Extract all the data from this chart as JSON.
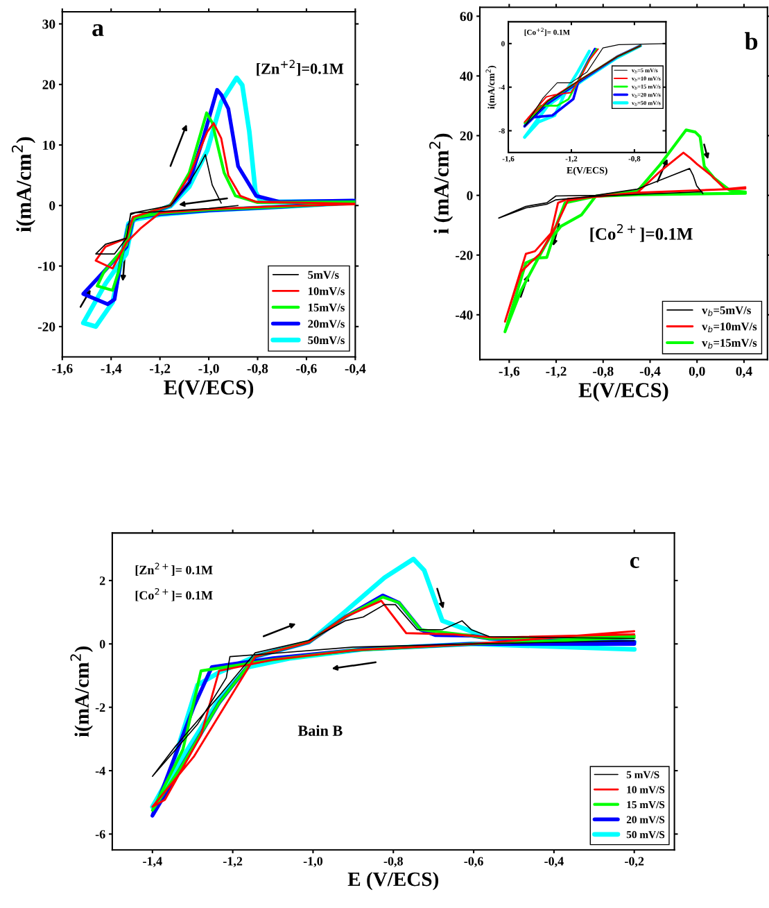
{
  "chart_data": [
    {
      "type": "line",
      "xlabel": "E(V/ECS)",
      "ylabel": "i(mA/cm$^{2}$)",
      "annotations": [
        "a",
        "[Zn$^{+2}$]=0.1M"
      ],
      "xlim": [
        -1.6,
        -0.4
      ],
      "xticks": [
        {
          "value": -1.6,
          "label": "-1,6"
        },
        {
          "value": -1.4,
          "label": "-1,4"
        },
        {
          "value": -1.2,
          "label": "-1,2"
        },
        {
          "value": -1.0,
          "label": "-1,0"
        },
        {
          "value": -0.8,
          "label": "-0,8"
        },
        {
          "value": -0.6,
          "label": "-0,6"
        },
        {
          "value": -0.4,
          "label": "-0,4"
        }
      ],
      "ylim": [
        -25,
        32
      ],
      "yticks": [
        -20,
        -10,
        0,
        10,
        20,
        30
      ],
      "legend": "bottom right",
      "grid": false,
      "tick_labels": "xy",
      "series": [
        {
          "name": "5mV/s",
          "color": "#000000",
          "x": [
            -0.88,
            -1.0,
            -1.2,
            -1.3,
            -1.32,
            -1.337,
            -1.386,
            -1.463,
            -1.423,
            -1.337,
            -1.32,
            -1.157,
            -1.08,
            -1.034,
            -1.014,
            -0.986,
            -0.949
          ],
          "values": [
            0,
            -0.5,
            -1.0,
            -1.2,
            -1.5,
            -5.4,
            -8,
            -8,
            -6.4,
            -5.4,
            -1.3,
            0,
            3.8,
            6.9,
            8.4,
            3.4,
            0.4
          ]
        },
        {
          "name": "10mV/s",
          "color": "#ff0000",
          "x": [
            -0.4,
            -0.7,
            -1.0,
            -1.2,
            -1.234,
            -1.28,
            -1.337,
            -1.394,
            -1.463,
            -1.423,
            -1.337,
            -1.31,
            -1.157,
            -1.08,
            -1.006,
            -0.98,
            -0.949,
            -0.92,
            -0.871,
            -0.806,
            -0.4
          ],
          "values": [
            0.2,
            -0.1,
            -0.6,
            -1.2,
            -2.3,
            -3.8,
            -6.1,
            -10.4,
            -9.1,
            -6.8,
            -5.4,
            -1.9,
            0,
            4.9,
            12.2,
            13.6,
            11.1,
            5.0,
            1.6,
            0.6,
            0.3
          ]
        },
        {
          "name": "15mV/s",
          "color": "#00ff00",
          "x": [
            -0.4,
            -0.7,
            -1.0,
            -1.2,
            -1.3,
            -1.33,
            -1.37,
            -1.394,
            -1.457,
            -1.43,
            -1.337,
            -1.31,
            -1.157,
            -1.08,
            -1.009,
            -0.986,
            -0.937,
            -0.891,
            -0.8,
            -0.4
          ],
          "values": [
            0.4,
            -0.2,
            -0.7,
            -1.3,
            -2.0,
            -3.5,
            -11,
            -14,
            -13.3,
            -11,
            -6.5,
            -2.0,
            0,
            5.4,
            15.3,
            13.7,
            5.4,
            1.6,
            0.5,
            0.6
          ]
        },
        {
          "name": "20mV/s",
          "color": "#0000ff",
          "x": [
            -0.4,
            -0.7,
            -1.0,
            -1.2,
            -1.3,
            -1.329,
            -1.36,
            -1.386,
            -1.414,
            -1.514,
            -1.42,
            -1.337,
            -1.31,
            -1.157,
            -1.08,
            -1.023,
            -0.966,
            -0.949,
            -0.92,
            -0.88,
            -0.806,
            -0.709,
            -0.4
          ],
          "values": [
            0.5,
            -0.2,
            -0.8,
            -1.4,
            -2.0,
            -3.3,
            -9,
            -15.5,
            -16.3,
            -14.6,
            -10.5,
            -6.8,
            -2.3,
            0,
            3.8,
            11.1,
            19.1,
            18.3,
            16,
            6.5,
            1.6,
            0.6,
            0.8
          ]
        },
        {
          "name": "50mV/s",
          "color": "#00ffff",
          "x": [
            -0.4,
            -0.7,
            -1.0,
            -1.2,
            -1.3,
            -1.329,
            -1.366,
            -1.394,
            -1.463,
            -1.514,
            -1.423,
            -1.338,
            -1.31,
            -1.157,
            -1.08,
            -1.006,
            -0.949,
            -0.886,
            -0.863,
            -0.834,
            -0.809,
            -0.786,
            -0.4
          ],
          "values": [
            0.5,
            -0.2,
            -0.8,
            -1.5,
            -2.3,
            -3.0,
            -10.6,
            -16,
            -20,
            -19.4,
            -12.9,
            -8.0,
            -2.3,
            -0.1,
            3.1,
            9.1,
            17.1,
            21.1,
            19.9,
            12.2,
            2.3,
            0.6,
            0.7
          ]
        }
      ]
    },
    {
      "type": "line",
      "xlabel": "E(V/ECS)",
      "ylabel": "i (mA/cm$^{2}$)",
      "annotations": [
        "b",
        "[Co$^{2+}$]=0.1M"
      ],
      "xlim": [
        -1.85,
        0.6
      ],
      "xticks": [
        {
          "value": -1.6,
          "label": "-1,6"
        },
        {
          "value": -1.2,
          "label": "-1,2"
        },
        {
          "value": -0.8,
          "label": "-0,8"
        },
        {
          "value": -0.4,
          "label": "-0,4"
        },
        {
          "value": 0.0,
          "label": "0,0"
        },
        {
          "value": 0.4,
          "label": "0,4"
        }
      ],
      "ylim": [
        -55,
        63
      ],
      "yticks": [
        -40,
        -20,
        0,
        20,
        40,
        60
      ],
      "legend": "bottom right",
      "grid": false,
      "series": [
        {
          "name": "v$_{b}$=5mV/s",
          "color": "#000000",
          "x": [
            0.044,
            -0.4,
            -0.864,
            -1.202,
            -1.28,
            -1.458,
            -1.689,
            -1.458,
            -1.28,
            -1.202,
            -0.864,
            -0.508,
            -0.27,
            -0.063,
            -0.033,
            -0.003,
            0.05
          ],
          "values": [
            1.2,
            0.5,
            -0.3,
            -1.5,
            -3.0,
            -4.2,
            -7.6,
            -3.7,
            -2.5,
            -0.2,
            0,
            2.1,
            5.8,
            9.0,
            6.7,
            3.2,
            0.6
          ]
        },
        {
          "name": "v$_{b}$=10mV/s",
          "color": "#ff0000",
          "x": [
            0.412,
            -0.5,
            -0.864,
            -1.101,
            -1.184,
            -1.244,
            -1.38,
            -1.458,
            -1.636,
            -1.5,
            -1.34,
            -1.22,
            -1.101,
            -0.864,
            -0.508,
            -0.312,
            -0.116,
            -0.057,
            0.002,
            0.121,
            0.24,
            0.412
          ],
          "values": [
            2.3,
            0.9,
            -0.5,
            -1.2,
            -2.5,
            -12.7,
            -18.7,
            -19.6,
            -42.3,
            -25.6,
            -19.6,
            -11.8,
            -1.8,
            -0.3,
            0.9,
            8.1,
            14.3,
            12.5,
            10.4,
            6.7,
            2.1,
            2.7
          ]
        },
        {
          "name": "v$_{b}$=15mV/s",
          "color": "#00ff00",
          "x": [
            0.412,
            -0.5,
            -0.864,
            -0.983,
            -1.161,
            -1.22,
            -1.28,
            -1.362,
            -1.458,
            -1.636,
            -1.5,
            -1.34,
            -1.202,
            -1.125,
            -0.864,
            -0.508,
            -0.312,
            -0.093,
            -0.015,
            0.026,
            0.062,
            0.145,
            0.282,
            0.412
          ],
          "values": [
            0.7,
            0.2,
            -0.3,
            -6.5,
            -10.4,
            -13.4,
            -20.8,
            -21,
            -22.6,
            -45.7,
            -31.9,
            -20.1,
            -10.4,
            -2.5,
            -0.3,
            1.4,
            10.4,
            21.9,
            21.2,
            19.6,
            9.7,
            5.8,
            1.6,
            1.1
          ]
        }
      ]
    },
    {
      "type": "line",
      "xlabel": "E(V/ECS)",
      "ylabel": "i(mA/cm$^{2}$)",
      "annotations": [
        "[Co$^{+2}$]= 0.1M"
      ],
      "xlim": [
        -1.6,
        -0.6
      ],
      "xticks": [
        {
          "value": -1.6,
          "label": "-1,6"
        },
        {
          "value": -1.2,
          "label": "-1,2"
        },
        {
          "value": -0.8,
          "label": "-0,8"
        }
      ],
      "ylim": [
        -10,
        2
      ],
      "yticks": [
        -8,
        -4,
        0
      ],
      "legend": "right",
      "grid": false,
      "series": [
        {
          "name": "v$_{b}$=5 mV/s",
          "color": "#000000",
          "x": [
            -0.6,
            -0.9,
            -1.0,
            -1.1,
            -1.203,
            -1.29,
            -1.38,
            -1.497,
            -1.35,
            -1.13,
            -0.91,
            -0.762
          ],
          "values": [
            0,
            -0.1,
            -0.4,
            -2.6,
            -3.6,
            -3.6,
            -5.0,
            -7.6,
            -5.3,
            -3.2,
            -1.2,
            -0.2
          ]
        },
        {
          "name": "v$_{b}$=10 mV/s",
          "color": "#ff0000",
          "x": [
            -1.03,
            -1.08,
            -1.15,
            -1.203,
            -1.306,
            -1.36,
            -1.497,
            -1.35,
            -1.13,
            -0.91,
            -0.762
          ],
          "values": [
            -0.5,
            -1.4,
            -3.3,
            -4.5,
            -4.7,
            -4.9,
            -7.2,
            -5.2,
            -3.2,
            -1.2,
            -0.2
          ]
        },
        {
          "name": "v$_{b}$=15 mV/s",
          "color": "#00ff00",
          "x": [
            -1.04,
            -1.09,
            -1.16,
            -1.218,
            -1.291,
            -1.394,
            -1.497,
            -1.35,
            -1.13,
            -0.91,
            -0.762
          ],
          "values": [
            -0.5,
            -1.6,
            -3.5,
            -5.1,
            -5.7,
            -5.7,
            -7.3,
            -5.3,
            -3.2,
            -1.2,
            -0.2
          ]
        },
        {
          "name": "v$_{b}$=20 mV/s",
          "color": "#0000ff",
          "x": [
            -1.05,
            -1.09,
            -1.15,
            -1.188,
            -1.321,
            -1.468,
            -1.497,
            -1.35,
            -1.13,
            -0.91,
            -0.762
          ],
          "values": [
            -0.5,
            -1.5,
            -3.2,
            -5.1,
            -6.6,
            -6.8,
            -7.6,
            -5.5,
            -3.3,
            -1.2,
            -0.2
          ]
        },
        {
          "name": "v$_{b}$=50 mV/s",
          "color": "#00ffff",
          "x": [
            -1.086,
            -1.159,
            -1.232,
            -1.306,
            -1.409,
            -1.497,
            -1.35,
            -1.13,
            -0.91,
            -0.762
          ],
          "values": [
            -0.7,
            -2.6,
            -4.3,
            -6.6,
            -7.2,
            -8.6,
            -5.7,
            -3.4,
            -1.3,
            -0.2
          ]
        }
      ]
    },
    {
      "type": "line",
      "xlabel": "E (V/ECS)",
      "ylabel": "i(mA/cm$^{2}$)",
      "annotations": [
        "c",
        "[Zn$^{2+}$]= 0.1M",
        "[Co$^{2+}$]= 0.1M",
        "Bain B"
      ],
      "xlim": [
        -1.5,
        -0.1
      ],
      "xticks": [
        {
          "value": -1.4,
          "label": "-1,4"
        },
        {
          "value": -1.2,
          "label": "-1,2"
        },
        {
          "value": -1.0,
          "label": "-1,0"
        },
        {
          "value": -0.8,
          "label": "-0,8"
        },
        {
          "value": -0.6,
          "label": "-0,6"
        },
        {
          "value": -0.4,
          "label": "-0,4"
        },
        {
          "value": -0.2,
          "label": "-0,2"
        }
      ],
      "ylim": [
        -6.5,
        3.5
      ],
      "yticks": [
        -6,
        -4,
        -2,
        0,
        2
      ],
      "legend": "bottom right",
      "grid": false,
      "series": [
        {
          "name": "5 mV/S",
          "color": "#000000",
          "x": [
            -0.2,
            -0.6,
            -0.9,
            -1.1,
            -1.207,
            -1.216,
            -1.288,
            -1.4,
            -1.342,
            -1.234,
            -1.144,
            -1.01,
            -0.92,
            -0.875,
            -0.822,
            -0.795,
            -0.741,
            -0.678,
            -0.629,
            -0.606,
            -0.561,
            -0.2
          ],
          "values": [
            0.1,
            0,
            -0.1,
            -0.3,
            -0.4,
            -1.07,
            -2.54,
            -4.18,
            -3.22,
            -1.64,
            -0.28,
            0.11,
            0.73,
            0.85,
            1.24,
            1.24,
            0.45,
            0.45,
            0.73,
            0.45,
            0.23,
            0.17
          ]
        },
        {
          "name": "10 mV/S",
          "color": "#ff0000",
          "x": [
            -0.2,
            -0.6,
            -0.9,
            -1.1,
            -1.234,
            -1.279,
            -1.369,
            -1.4,
            -1.297,
            -1.144,
            -1.01,
            -0.92,
            -0.83,
            -0.768,
            -0.65,
            -0.55,
            -0.2
          ],
          "values": [
            0.4,
            0,
            -0.2,
            -0.5,
            -0.85,
            -2.88,
            -4.92,
            -5.14,
            -3.56,
            -0.4,
            0.06,
            0.85,
            1.36,
            0.34,
            0.3,
            0.2,
            0.3
          ]
        },
        {
          "name": "15 mV/S",
          "color": "#00ff00",
          "x": [
            -0.2,
            -0.6,
            -0.9,
            -1.1,
            -1.279,
            -1.324,
            -1.4,
            -1.324,
            -1.234,
            -1.144,
            -1.01,
            -0.92,
            -0.826,
            -0.786,
            -0.732,
            -0.606,
            -0.561,
            -0.2
          ],
          "values": [
            0.2,
            0,
            -0.2,
            -0.5,
            -0.85,
            -3.33,
            -5.25,
            -3.79,
            -1.86,
            -0.4,
            0.06,
            0.85,
            1.48,
            1.3,
            0.45,
            0.26,
            0.17,
            0.25
          ]
        },
        {
          "name": "20 mV/S",
          "color": "#0000ff",
          "x": [
            -0.2,
            -0.606,
            -0.875,
            -1.1,
            -1.252,
            -1.297,
            -1.4,
            -1.324,
            -1.234,
            -1.144,
            -1.01,
            -0.92,
            -0.826,
            -0.786,
            -0.732,
            -0.696,
            -0.606,
            -0.561,
            -0.2
          ],
          "values": [
            0,
            0,
            -0.17,
            -0.45,
            -0.73,
            -1.98,
            -5.42,
            -3.79,
            -1.86,
            -0.4,
            0.06,
            0.85,
            1.53,
            1.3,
            0.45,
            0.28,
            0.26,
            0.17,
            0.06
          ]
        },
        {
          "name": "50 mV/S",
          "color": "#00ffff",
          "x": [
            -0.2,
            -0.606,
            -0.875,
            -1.055,
            -1.162,
            -1.234,
            -1.324,
            -1.4,
            -1.36,
            -1.288,
            -1.234,
            -1.144,
            -1.01,
            -0.92,
            -0.822,
            -0.75,
            -0.723,
            -0.678,
            -0.606,
            -0.561,
            -0.2
          ],
          "values": [
            -0.17,
            0,
            -0.17,
            -0.45,
            -0.73,
            -1.75,
            -3.56,
            -5.14,
            -4.24,
            -1.3,
            -0.9,
            -0.4,
            0.06,
            1.02,
            2.09,
            2.68,
            2.32,
            0.73,
            0.4,
            0.17,
            0.06
          ]
        }
      ]
    }
  ]
}
